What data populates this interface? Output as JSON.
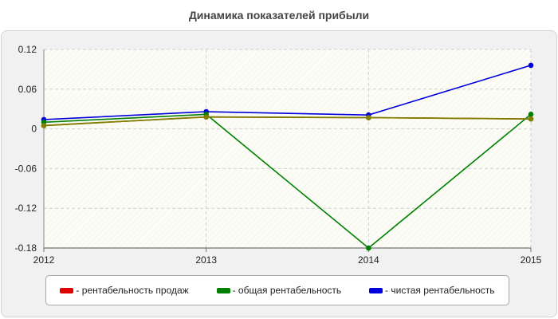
{
  "chart_data": {
    "type": "line",
    "title": "Динамика показателей прибыли",
    "categories": [
      "2012",
      "2013",
      "2014",
      "2015"
    ],
    "ylim": [
      -0.18,
      0.12
    ],
    "yticks": [
      {
        "value": 0.12,
        "label": "0.12"
      },
      {
        "value": 0.06,
        "label": "0.06"
      },
      {
        "value": 0,
        "label": "0"
      },
      {
        "value": -0.06,
        "label": "-0.06"
      },
      {
        "value": -0.12,
        "label": "-0.12"
      },
      {
        "value": -0.18,
        "label": "-0.18"
      }
    ],
    "grid": true,
    "legend_position": "bottom",
    "series": [
      {
        "name": "рентабельность продаж",
        "color": "#e00000",
        "values": [
          0.005,
          0.018,
          0.017,
          0.015
        ]
      },
      {
        "name": "общая рентабельность",
        "color": "#008000",
        "values": [
          0.01,
          0.022,
          -0.18,
          0.022
        ]
      },
      {
        "name": "чистая рентабельность",
        "color": "#0000dd",
        "values": [
          0.014,
          0.026,
          0.021,
          0.096
        ]
      }
    ],
    "overlay_color": "#808000"
  }
}
